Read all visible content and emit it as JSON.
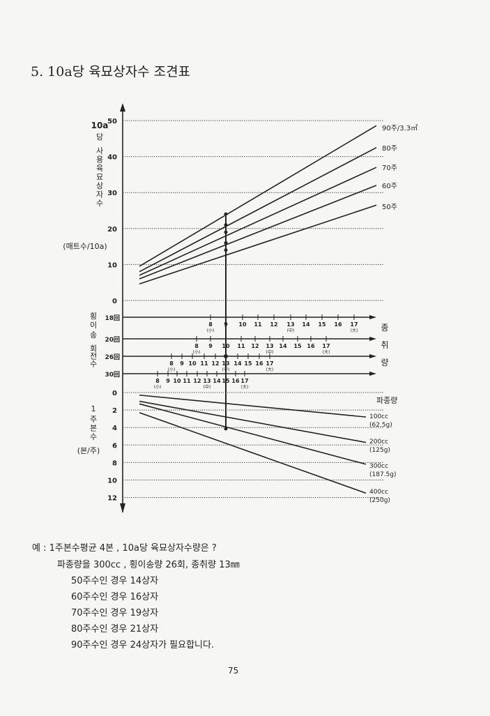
{
  "title": "5. 10a당 육묘상자수 조견표",
  "page_number": "75",
  "chart_data": {
    "type": "nomogram",
    "top_panel": {
      "ylabel_lines": [
        "10a",
        "당",
        "사용육묘상자수"
      ],
      "yunit": "(매트수/10a)",
      "ylim": [
        0,
        50
      ],
      "ticks": [
        "0",
        "10",
        "20",
        "30",
        "40",
        "50"
      ],
      "grid": "dotted",
      "series": [
        {
          "name": "90주/3.3㎡",
          "y_left": 9.5,
          "y_right": 48.6
        },
        {
          "name": "80주",
          "y_left": 8.0,
          "y_right": 42.5
        },
        {
          "name": "70주",
          "y_left": 7.0,
          "y_right": 37.0
        },
        {
          "name": "60주",
          "y_left": 6.0,
          "y_right": 32.0
        },
        {
          "name": "50주",
          "y_left": 4.6,
          "y_right": 26.5
        }
      ],
      "readings": [
        24,
        21,
        19,
        16,
        14
      ]
    },
    "middle_panel": {
      "ylabel_lines": [
        "횡이송",
        "회전수"
      ],
      "right_label": [
        "종",
        "취",
        "량"
      ],
      "rows": [
        {
          "label": "18回",
          "ticks": [
            "8",
            "9",
            "10",
            "11",
            "12",
            "13",
            "14",
            "15",
            "16",
            "17"
          ]
        },
        {
          "label": "20回",
          "ticks": [
            "8",
            "9",
            "10",
            "11",
            "12",
            "13",
            "14",
            "15",
            "16",
            "17"
          ]
        },
        {
          "label": "26回",
          "ticks": [
            "8",
            "9",
            "10",
            "11",
            "12",
            "13",
            "14",
            "15",
            "16",
            "17"
          ]
        },
        {
          "label": "30回",
          "ticks": [
            "8",
            "9",
            "10",
            "11",
            "12",
            "13",
            "14",
            "15",
            "16",
            "17"
          ]
        }
      ],
      "size_marks": {
        "8": "(小)",
        "13": "(中)",
        "17": "(大)"
      }
    },
    "bottom_panel": {
      "ylabel_lines": [
        "1",
        "주본수"
      ],
      "yunit": "(본/주)",
      "ylim": [
        0,
        12
      ],
      "inverted": true,
      "ticks": [
        "0",
        "2",
        "4",
        "6",
        "8",
        "10",
        "12"
      ],
      "legend_title": "파종량",
      "series": [
        {
          "name": "100cc",
          "sub": "(62.5g)",
          "y_left": 0.3,
          "y_right": 2.8
        },
        {
          "name": "200cc",
          "sub": "(125g)",
          "y_left": 1.0,
          "y_right": 5.7
        },
        {
          "name": "300cc",
          "sub": "(187.5g)",
          "y_left": 1.3,
          "y_right": 8.2
        },
        {
          "name": "400cc",
          "sub": "(250g)",
          "y_left": 2.3,
          "y_right": 11.5
        }
      ]
    },
    "example_path": {
      "plants_per_hill": 4,
      "seeding": "300cc",
      "turning": "26回",
      "take": "13"
    }
  },
  "example": {
    "line1": "예 : 1주본수평균 4본 , 10a당 육묘상자수량은 ?",
    "line2": "파종량을 300cc , 횡이송량 26회, 종취량 13㎜",
    "results": [
      "50주수인 경우   14상자",
      "60주수인 경우   16상자",
      "70주수인 경우   19상자",
      "80주수인 경우   21상자",
      "90주수인 경우   24상자가 필요합니다."
    ]
  }
}
